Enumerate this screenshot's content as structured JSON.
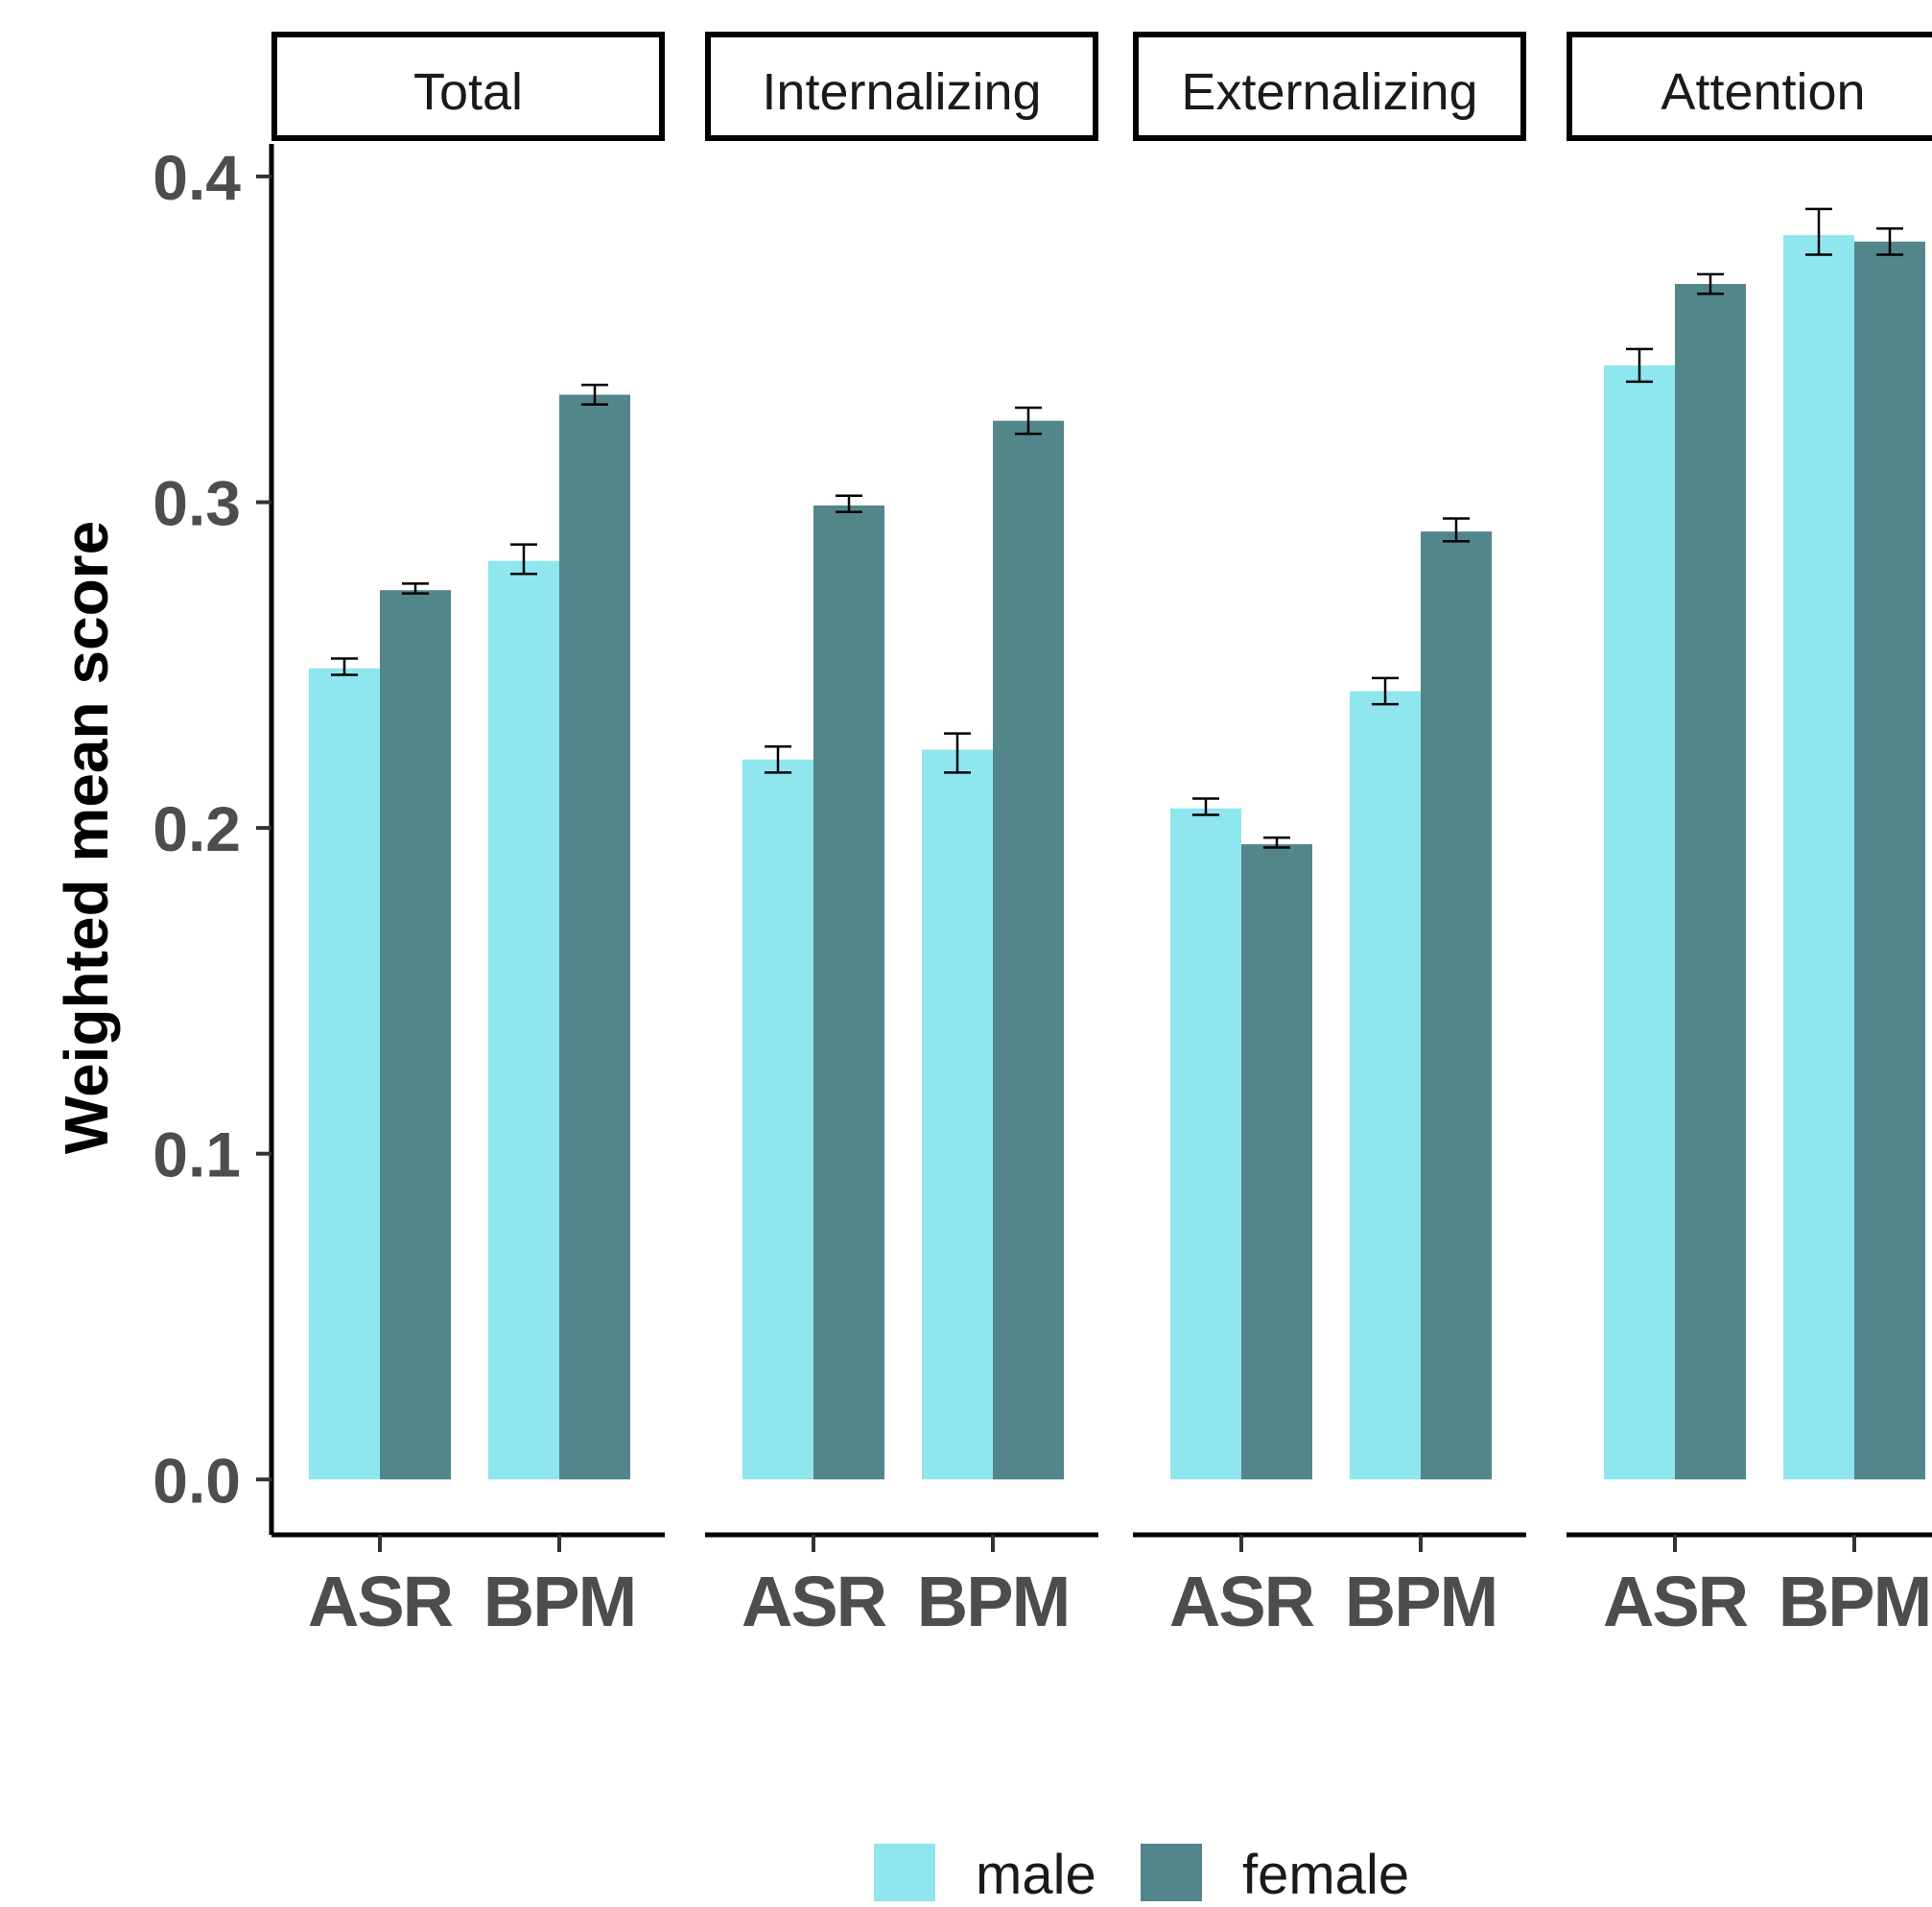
{
  "chart_data": {
    "type": "bar",
    "ylabel": "Weighted mean score",
    "xlabel": "",
    "ylim": [
      -0.017,
      0.41
    ],
    "yticks": [
      0.0,
      0.1,
      0.2,
      0.3,
      0.4
    ],
    "ytick_labels": [
      "0.0",
      "0.1",
      "0.2",
      "0.3",
      "0.4"
    ],
    "categories": [
      "ASR",
      "BPM"
    ],
    "legend": {
      "placement": "bottom",
      "entries": [
        "male",
        "female"
      ]
    },
    "colors": {
      "male": "#8fe6ee",
      "female": "#53868a"
    },
    "grid": false,
    "panels": [
      {
        "title": "Total",
        "series": [
          {
            "name": "male",
            "values": [
              0.249,
              0.282
            ],
            "err_low": [
              0.247,
              0.278
            ],
            "err_high": [
              0.252,
              0.287
            ]
          },
          {
            "name": "female",
            "values": [
              0.273,
              0.333
            ],
            "err_low": [
              0.272,
              0.33
            ],
            "err_high": [
              0.275,
              0.336
            ]
          }
        ]
      },
      {
        "title": "Internalizing",
        "series": [
          {
            "name": "male",
            "values": [
              0.221,
              0.224
            ],
            "err_low": [
              0.217,
              0.217
            ],
            "err_high": [
              0.225,
              0.229
            ]
          },
          {
            "name": "female",
            "values": [
              0.299,
              0.325
            ],
            "err_low": [
              0.297,
              0.321
            ],
            "err_high": [
              0.302,
              0.329
            ]
          }
        ]
      },
      {
        "title": "Externalizing",
        "series": [
          {
            "name": "male",
            "values": [
              0.206,
              0.242
            ],
            "err_low": [
              0.204,
              0.238
            ],
            "err_high": [
              0.209,
              0.246
            ]
          },
          {
            "name": "female",
            "values": [
              0.195,
              0.291
            ],
            "err_low": [
              0.194,
              0.288
            ],
            "err_high": [
              0.197,
              0.295
            ]
          }
        ]
      },
      {
        "title": "Attention",
        "series": [
          {
            "name": "male",
            "values": [
              0.342,
              0.382
            ],
            "err_low": [
              0.337,
              0.376
            ],
            "err_high": [
              0.347,
              0.39
            ]
          },
          {
            "name": "female",
            "values": [
              0.367,
              0.38
            ],
            "err_low": [
              0.364,
              0.376
            ],
            "err_high": [
              0.37,
              0.384
            ]
          }
        ]
      }
    ]
  }
}
